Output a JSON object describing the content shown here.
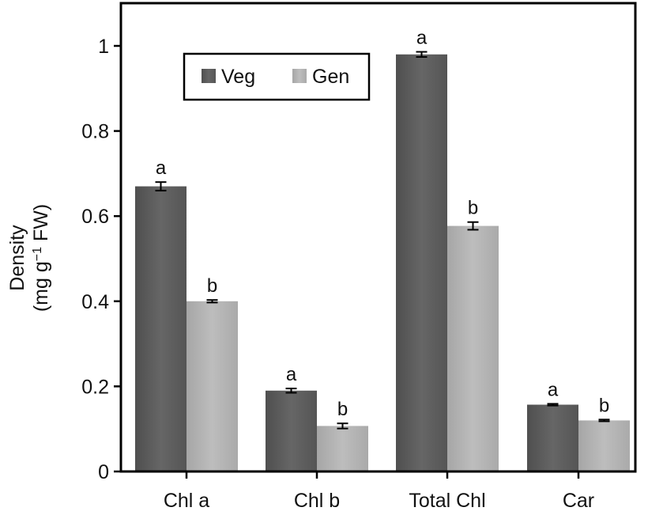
{
  "chart_data": {
    "type": "bar",
    "title": "",
    "xlabel": "",
    "ylabel": {
      "line1": "Density",
      "line2_prefix": "(mg g",
      "line2_superscript": "−1",
      "line2_suffix": " FW)"
    },
    "ylim": [
      0,
      1.1
    ],
    "yticks": [
      {
        "value": 0,
        "label": "0"
      },
      {
        "value": 0.2,
        "label": "0.2"
      },
      {
        "value": 0.4,
        "label": "0.4"
      },
      {
        "value": 0.6,
        "label": "0.6"
      },
      {
        "value": 0.8,
        "label": "0.8"
      },
      {
        "value": 1.0,
        "label": "1"
      }
    ],
    "categories": [
      "Chl a",
      "Chl b",
      "Total Chl",
      "Car"
    ],
    "series": [
      {
        "name": "Veg",
        "color": "#5e5e5e",
        "values": [
          0.67,
          0.19,
          0.98,
          0.157
        ],
        "errors": [
          0.01,
          0.005,
          0.006,
          0.002
        ],
        "significance": [
          "a",
          "a",
          "a",
          "a"
        ]
      },
      {
        "name": "Gen",
        "color": "#b3b3b3",
        "values": [
          0.4,
          0.107,
          0.577,
          0.12
        ],
        "errors": [
          0.003,
          0.006,
          0.009,
          0.002
        ],
        "significance": [
          "b",
          "b",
          "b",
          "b"
        ]
      }
    ],
    "legend": {
      "position": "top-left",
      "entries": [
        "Veg",
        "Gen"
      ]
    },
    "grid": false
  }
}
